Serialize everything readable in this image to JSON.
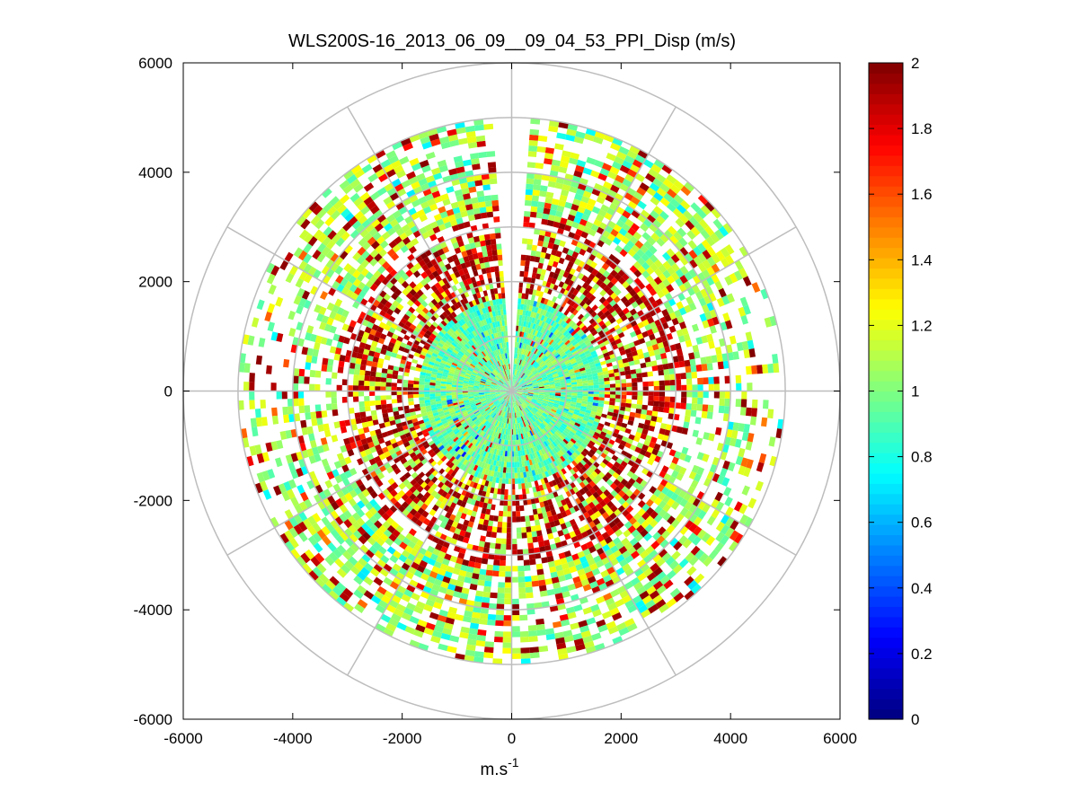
{
  "chart_data": {
    "type": "heatmap",
    "subtype": "polar-ppi-scan",
    "title": "WLS200S-16_2013_06_09__09_04_53_PPI_Disp (m/s)",
    "xlabel": "m.s",
    "xlabel_superscript": "-1",
    "ylabel": "",
    "xlim": [
      -6000,
      6000
    ],
    "ylim": [
      -6000,
      6000
    ],
    "x_ticks": [
      -6000,
      -4000,
      -2000,
      0,
      2000,
      4000,
      6000
    ],
    "y_ticks": [
      -6000,
      -4000,
      -2000,
      0,
      2000,
      4000,
      6000
    ],
    "x_tick_labels": [
      "-6000",
      "-4000",
      "-2000",
      "0",
      "2000",
      "4000",
      "6000"
    ],
    "y_tick_labels": [
      "6000",
      "4000",
      "2000",
      "0",
      "-2000",
      "-4000",
      "-6000"
    ],
    "polar_grid": {
      "ring_radii": [
        1000,
        2000,
        3000,
        4000,
        5000,
        6000
      ],
      "spoke_angles_deg": [
        0,
        30,
        60,
        90,
        120,
        150,
        180,
        210,
        240,
        270,
        300,
        330
      ]
    },
    "data_extent": {
      "max_range": 5100,
      "missing_sector_deg": [
        86,
        94
      ],
      "description": "dense turbulence-like speckle near center (~1.0 m/s), patchy high values (~2) in ring 1500-3000, mixed 0.9-1.3 values in outer ring 3000-5000"
    },
    "colorbar": {
      "colormap": "jet",
      "range": [
        0,
        2
      ],
      "ticks": [
        0,
        0.2,
        0.4,
        0.6,
        0.8,
        1,
        1.2,
        1.4,
        1.6,
        1.8,
        2
      ],
      "tick_labels": [
        "0",
        "0.2",
        "0.4",
        "0.6",
        "0.8",
        "1",
        "1.2",
        "1.4",
        "1.6",
        "1.8",
        "2"
      ]
    }
  }
}
